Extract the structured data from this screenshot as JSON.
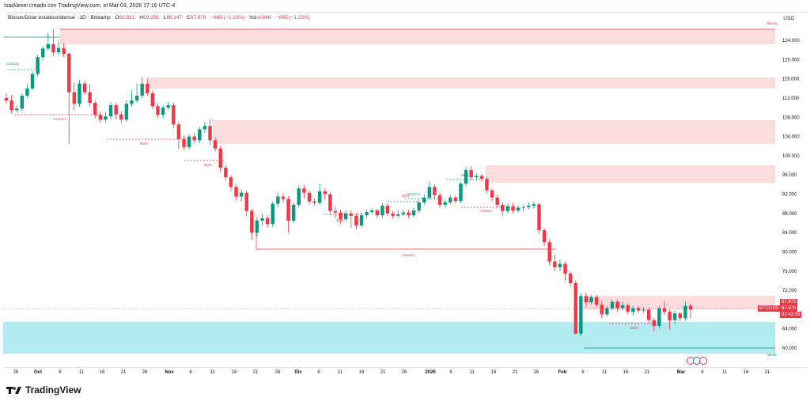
{
  "watermark": "IsaiAlexei creado con TradingView.com, el Mar 03, 2026 17:16 UTC-4",
  "header": {
    "symbol": "Bitcoin/Dólar estadounidense · 1D · Bitstamp",
    "o_label": "O",
    "o_value": "68.821",
    "h_label": "H",
    "h_value": "69.256",
    "l_label": "L",
    "l_value": "66.147",
    "c_label": "C",
    "c_value": "67.976",
    "change": "−845 (−1,23%)",
    "vol_label": "Vol.",
    "vol_value": "4,94K",
    "vol_change": "−845 (−1,23%)"
  },
  "currency": "USD",
  "price_tags": {
    "symbol": "BTCUSD",
    "price1": "67.976",
    "price2": "67.976",
    "countdown": "02:43:35"
  },
  "logo_text": "TradingView",
  "colors": {
    "up": "#089981",
    "down": "#f23645",
    "supply_zone": "#fcdcdd",
    "demand_zone": "#b3ebf2"
  },
  "chart_data": {
    "type": "candlestick",
    "y_axis": {
      "min": 58000,
      "max": 128000,
      "ticks": [
        "124.000",
        "120.000",
        "116.000",
        "112.000",
        "108.000",
        "104.000",
        "100.000",
        "96.000",
        "92.000",
        "88.000",
        "84.000",
        "80.000",
        "76.000",
        "72.000",
        "68.000",
        "64.000",
        "60.000"
      ]
    },
    "x_axis_ticks": [
      "26",
      "Oct",
      "6",
      "11",
      "16",
      "21",
      "26",
      "Nov",
      "6",
      "11",
      "16",
      "21",
      "26",
      "Dic",
      "6",
      "11",
      "16",
      "21",
      "26",
      "2026",
      "6",
      "11",
      "16",
      "21",
      "26",
      "Feb",
      "6",
      "11",
      "16",
      "21",
      "Mar",
      "6",
      "11",
      "16",
      "21"
    ],
    "annotations": [
      "CHoCH",
      "BOS",
      "CHoCH",
      "BOS",
      "BOS",
      "BOS",
      "CHoCH",
      "BOS",
      "CHoCH",
      "CHoCH",
      "BOS",
      "CHoCH",
      "BOS",
      "Strong",
      "Weak"
    ],
    "series": [
      {
        "o": 112,
        "c": 111.5,
        "h": 113,
        "l": 110.8
      },
      {
        "o": 111.5,
        "c": 109.5,
        "h": 112.6,
        "l": 108.8
      },
      {
        "o": 109.5,
        "c": 109.8,
        "h": 110.5,
        "l": 109
      },
      {
        "o": 109.8,
        "c": 112.5,
        "h": 113,
        "l": 109.3
      },
      {
        "o": 112.5,
        "c": 114,
        "h": 114.8,
        "l": 112
      },
      {
        "o": 114,
        "c": 117,
        "h": 117.6,
        "l": 113.6
      },
      {
        "o": 117,
        "c": 120.5,
        "h": 121,
        "l": 116.5
      },
      {
        "o": 120.5,
        "c": 122.3,
        "h": 122.8,
        "l": 119.8
      },
      {
        "o": 122.3,
        "c": 123.2,
        "h": 125.5,
        "l": 121.8
      },
      {
        "o": 123.2,
        "c": 121.5,
        "h": 126.3,
        "l": 120.8
      },
      {
        "o": 121.5,
        "c": 122.4,
        "h": 123.9,
        "l": 120.9
      },
      {
        "o": 122.4,
        "c": 121.2,
        "h": 123.5,
        "l": 120.5
      },
      {
        "o": 121.2,
        "c": 113.2,
        "h": 121.6,
        "l": 102.5
      },
      {
        "o": 113.2,
        "c": 110.8,
        "h": 115.2,
        "l": 109.5
      },
      {
        "o": 110.8,
        "c": 115,
        "h": 115.8,
        "l": 110.2
      },
      {
        "o": 115,
        "c": 113.2,
        "h": 115.7,
        "l": 112.6
      },
      {
        "o": 113.2,
        "c": 111,
        "h": 114.9,
        "l": 110.3
      },
      {
        "o": 111,
        "c": 108.5,
        "h": 111.5,
        "l": 107.8
      },
      {
        "o": 108.5,
        "c": 107.5,
        "h": 109.2,
        "l": 106.8
      },
      {
        "o": 107.5,
        "c": 108.2,
        "h": 109,
        "l": 106.9
      },
      {
        "o": 108.2,
        "c": 110.5,
        "h": 111.1,
        "l": 107.6
      },
      {
        "o": 110.5,
        "c": 108.6,
        "h": 111,
        "l": 107.6
      },
      {
        "o": 108.6,
        "c": 107.5,
        "h": 109.3,
        "l": 106.8
      },
      {
        "o": 107.5,
        "c": 110.8,
        "h": 111.5,
        "l": 107
      },
      {
        "o": 110.8,
        "c": 111.5,
        "h": 113.6,
        "l": 110.2
      },
      {
        "o": 111.5,
        "c": 112.5,
        "h": 115,
        "l": 111
      },
      {
        "o": 112.5,
        "c": 115,
        "h": 116.4,
        "l": 112
      },
      {
        "o": 115,
        "c": 113,
        "h": 116.1,
        "l": 112.4
      },
      {
        "o": 113,
        "c": 110.3,
        "h": 113.6,
        "l": 109.7
      },
      {
        "o": 110.3,
        "c": 108.5,
        "h": 110.9,
        "l": 107.8
      },
      {
        "o": 108.5,
        "c": 110,
        "h": 110.5,
        "l": 107.8
      },
      {
        "o": 110,
        "c": 110.5,
        "h": 111.2,
        "l": 109.5
      },
      {
        "o": 110.5,
        "c": 106.5,
        "h": 111,
        "l": 105.8
      },
      {
        "o": 106.5,
        "c": 103.5,
        "h": 107.1,
        "l": 101.4
      },
      {
        "o": 103.5,
        "c": 101.8,
        "h": 104.2,
        "l": 101.2
      },
      {
        "o": 101.8,
        "c": 104,
        "h": 104.5,
        "l": 101.3
      },
      {
        "o": 104,
        "c": 103.2,
        "h": 104.8,
        "l": 102.6
      },
      {
        "o": 103.2,
        "c": 105.5,
        "h": 106,
        "l": 102.7
      },
      {
        "o": 105.5,
        "c": 106.2,
        "h": 107,
        "l": 104.8
      },
      {
        "o": 106.2,
        "c": 103.2,
        "h": 107.6,
        "l": 102.2
      },
      {
        "o": 103.2,
        "c": 101.5,
        "h": 103.8,
        "l": 100.9
      },
      {
        "o": 101.5,
        "c": 97.5,
        "h": 102.1,
        "l": 96.6
      },
      {
        "o": 97.5,
        "c": 95.5,
        "h": 98.1,
        "l": 94.8
      },
      {
        "o": 95.5,
        "c": 93.5,
        "h": 96,
        "l": 92.6
      },
      {
        "o": 93.5,
        "c": 91.5,
        "h": 94,
        "l": 90.8
      },
      {
        "o": 91.5,
        "c": 92.3,
        "h": 93,
        "l": 90.6
      },
      {
        "o": 92.3,
        "c": 88.5,
        "h": 92.8,
        "l": 87.4
      },
      {
        "o": 88.5,
        "c": 84,
        "h": 89,
        "l": 82.5
      },
      {
        "o": 84,
        "c": 86.5,
        "h": 87.2,
        "l": 83.2
      },
      {
        "o": 86.5,
        "c": 87,
        "h": 88,
        "l": 85.5
      },
      {
        "o": 87,
        "c": 85.8,
        "h": 87.6,
        "l": 85
      },
      {
        "o": 85.8,
        "c": 90,
        "h": 90.5,
        "l": 85.2
      },
      {
        "o": 90,
        "c": 91.5,
        "h": 92.3,
        "l": 89.3
      },
      {
        "o": 91.5,
        "c": 91,
        "h": 92.2,
        "l": 90.3
      },
      {
        "o": 91,
        "c": 86.5,
        "h": 91.6,
        "l": 84
      },
      {
        "o": 86.5,
        "c": 89.8,
        "h": 90.3,
        "l": 86
      },
      {
        "o": 89.8,
        "c": 93.2,
        "h": 93.8,
        "l": 89.2
      },
      {
        "o": 93.2,
        "c": 92.3,
        "h": 94,
        "l": 91.2
      },
      {
        "o": 92.3,
        "c": 90.5,
        "h": 92.8,
        "l": 89.8
      },
      {
        "o": 90.5,
        "c": 90.2,
        "h": 91.1,
        "l": 89.6
      },
      {
        "o": 90.2,
        "c": 92.6,
        "h": 94.2,
        "l": 89.8
      },
      {
        "o": 92.6,
        "c": 92,
        "h": 93.2,
        "l": 90.8
      },
      {
        "o": 92,
        "c": 88.5,
        "h": 92.5,
        "l": 87.6
      },
      {
        "o": 88.5,
        "c": 88.2,
        "h": 89.5,
        "l": 87
      },
      {
        "o": 88.2,
        "c": 86.8,
        "h": 88.8,
        "l": 85.8
      },
      {
        "o": 86.8,
        "c": 88,
        "h": 88.6,
        "l": 86.2
      },
      {
        "o": 88,
        "c": 87.5,
        "h": 88.6,
        "l": 85
      },
      {
        "o": 87.5,
        "c": 85.5,
        "h": 88,
        "l": 84.7
      },
      {
        "o": 85.5,
        "c": 87.6,
        "h": 88.2,
        "l": 85
      },
      {
        "o": 87.6,
        "c": 88.3,
        "h": 88.8,
        "l": 87
      },
      {
        "o": 88.3,
        "c": 88.6,
        "h": 89.1,
        "l": 87.8
      },
      {
        "o": 88.6,
        "c": 87.6,
        "h": 89,
        "l": 87
      },
      {
        "o": 87.6,
        "c": 89.6,
        "h": 90.2,
        "l": 87.1
      },
      {
        "o": 89.6,
        "c": 88,
        "h": 90.1,
        "l": 87.5
      },
      {
        "o": 88,
        "c": 87.5,
        "h": 88.5,
        "l": 86.9
      },
      {
        "o": 87.5,
        "c": 87.8,
        "h": 88.6,
        "l": 87
      },
      {
        "o": 87.8,
        "c": 88.2,
        "h": 88.8,
        "l": 87.4
      },
      {
        "o": 88.2,
        "c": 87.6,
        "h": 88.7,
        "l": 87
      },
      {
        "o": 87.6,
        "c": 88.6,
        "h": 89.2,
        "l": 87.2
      },
      {
        "o": 88.6,
        "c": 90.3,
        "h": 90.9,
        "l": 88.1
      },
      {
        "o": 90.3,
        "c": 91.3,
        "h": 92,
        "l": 89.8
      },
      {
        "o": 91.3,
        "c": 93.5,
        "h": 94.7,
        "l": 90.8
      },
      {
        "o": 93.5,
        "c": 91.8,
        "h": 94,
        "l": 90.9
      },
      {
        "o": 91.8,
        "c": 89.8,
        "h": 92.3,
        "l": 89.2
      },
      {
        "o": 89.8,
        "c": 90.3,
        "h": 90.9,
        "l": 89.3
      },
      {
        "o": 90.3,
        "c": 91.3,
        "h": 91.9,
        "l": 89.9
      },
      {
        "o": 91.3,
        "c": 90.6,
        "h": 91.8,
        "l": 90
      },
      {
        "o": 90.6,
        "c": 94.2,
        "h": 94.6,
        "l": 90.1
      },
      {
        "o": 94.2,
        "c": 97,
        "h": 97.6,
        "l": 93.6
      },
      {
        "o": 97,
        "c": 95.5,
        "h": 97.8,
        "l": 94.9
      },
      {
        "o": 95.5,
        "c": 95.8,
        "h": 96.3,
        "l": 95
      },
      {
        "o": 95.8,
        "c": 95.2,
        "h": 96.2,
        "l": 94.6
      },
      {
        "o": 95.2,
        "c": 92.8,
        "h": 95.7,
        "l": 92.1
      },
      {
        "o": 92.8,
        "c": 91.3,
        "h": 93.3,
        "l": 90.6
      },
      {
        "o": 91.3,
        "c": 89.8,
        "h": 91.8,
        "l": 89.2
      },
      {
        "o": 89.8,
        "c": 88.5,
        "h": 90.3,
        "l": 87.5
      },
      {
        "o": 88.5,
        "c": 89.5,
        "h": 90,
        "l": 88
      },
      {
        "o": 89.5,
        "c": 88.6,
        "h": 90.2,
        "l": 88
      },
      {
        "o": 88.6,
        "c": 89.2,
        "h": 89.7,
        "l": 88.2
      },
      {
        "o": 89.2,
        "c": 89.3,
        "h": 89.8,
        "l": 88.5
      },
      {
        "o": 89.3,
        "c": 89.6,
        "h": 90.3,
        "l": 88.9
      },
      {
        "o": 89.6,
        "c": 89.9,
        "h": 90.5,
        "l": 89
      },
      {
        "o": 89.9,
        "c": 84.5,
        "h": 90.3,
        "l": 83.6
      },
      {
        "o": 84.5,
        "c": 82,
        "h": 85,
        "l": 81.2
      },
      {
        "o": 82,
        "c": 78,
        "h": 82.6,
        "l": 77.2
      },
      {
        "o": 78,
        "c": 76.8,
        "h": 79.4,
        "l": 76
      },
      {
        "o": 76.8,
        "c": 77.5,
        "h": 78.5,
        "l": 76
      },
      {
        "o": 77.5,
        "c": 75.5,
        "h": 78,
        "l": 74
      },
      {
        "o": 75.5,
        "c": 73.5,
        "h": 76,
        "l": 72.8
      },
      {
        "o": 73.5,
        "c": 63,
        "h": 74,
        "l": 62.8
      },
      {
        "o": 63,
        "c": 70.8,
        "h": 71.4,
        "l": 62.5
      },
      {
        "o": 70.8,
        "c": 69.5,
        "h": 71.5,
        "l": 68.6
      },
      {
        "o": 69.5,
        "c": 70.6,
        "h": 71,
        "l": 69
      },
      {
        "o": 70.6,
        "c": 69,
        "h": 71.1,
        "l": 68.5
      },
      {
        "o": 69,
        "c": 67,
        "h": 69.8,
        "l": 66.2
      },
      {
        "o": 67,
        "c": 68.3,
        "h": 68.8,
        "l": 66.5
      },
      {
        "o": 68.3,
        "c": 69.6,
        "h": 70.1,
        "l": 67.8
      },
      {
        "o": 69.6,
        "c": 68.3,
        "h": 70,
        "l": 67.6
      },
      {
        "o": 68.3,
        "c": 68.9,
        "h": 69.7,
        "l": 67.8
      },
      {
        "o": 68.9,
        "c": 67.5,
        "h": 69.3,
        "l": 67
      },
      {
        "o": 67.5,
        "c": 68.3,
        "h": 68.8,
        "l": 66.8
      },
      {
        "o": 68.3,
        "c": 67.8,
        "h": 68.8,
        "l": 67.2
      },
      {
        "o": 67.8,
        "c": 68,
        "h": 68.5,
        "l": 67.3
      },
      {
        "o": 68,
        "c": 65.8,
        "h": 68.4,
        "l": 65.2
      },
      {
        "o": 65.8,
        "c": 64.6,
        "h": 66.3,
        "l": 63.4
      },
      {
        "o": 64.6,
        "c": 68.3,
        "h": 68.8,
        "l": 64
      },
      {
        "o": 68.3,
        "c": 67.5,
        "h": 69.8,
        "l": 66.8
      },
      {
        "o": 67.5,
        "c": 65.8,
        "h": 68,
        "l": 63.8
      },
      {
        "o": 65.8,
        "c": 67.2,
        "h": 67.8,
        "l": 64.9
      },
      {
        "o": 67.2,
        "c": 66.2,
        "h": 67.6,
        "l": 65.6
      },
      {
        "o": 66.2,
        "c": 68.8,
        "h": 69.7,
        "l": 65.7
      },
      {
        "o": 68.8,
        "c": 67.976,
        "h": 69.256,
        "l": 66.147
      }
    ]
  }
}
